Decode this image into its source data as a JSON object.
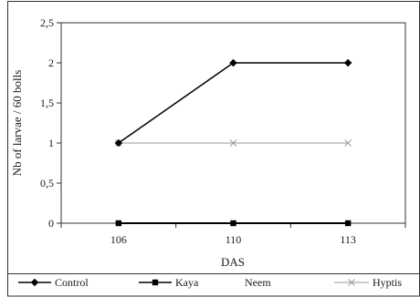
{
  "chart_data": {
    "type": "line",
    "x_categories": [
      "106",
      "110",
      "113"
    ],
    "xlabel": "DAS",
    "ylabel": "Nb of larvae / 60 bolls",
    "ylim": [
      0,
      2.5
    ],
    "y_ticks": [
      "0",
      "0,5",
      "1",
      "1,5",
      "2",
      "2,5"
    ],
    "grid": false,
    "legend_position": "bottom",
    "series": [
      {
        "name": "Control",
        "values": [
          1,
          2,
          2
        ],
        "color": "#000000",
        "marker": "diamond",
        "line": "solid"
      },
      {
        "name": "Kaya",
        "values": [
          0,
          0,
          0
        ],
        "color": "#000000",
        "marker": "square",
        "line": "solid"
      },
      {
        "name": "Neem",
        "values": [
          0,
          0,
          0
        ],
        "color": "#000000",
        "marker": "none",
        "line": "none"
      },
      {
        "name": "Hyptis",
        "values": [
          1,
          1,
          1
        ],
        "color": "#9a9a9a",
        "marker": "x",
        "line": "solid"
      }
    ]
  }
}
